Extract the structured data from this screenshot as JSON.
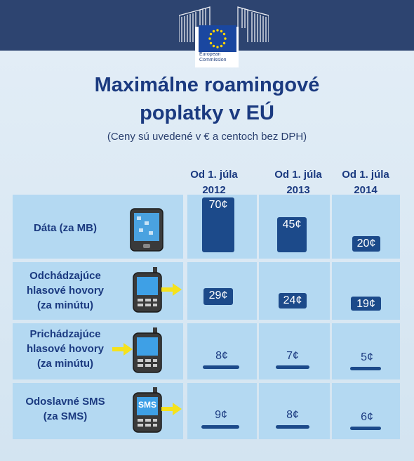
{
  "logo": {
    "line1": "European",
    "line2": "Commission"
  },
  "title": {
    "line1": "Maximálne roamingové",
    "line2": "poplatky v  EÚ"
  },
  "subtitle": "(Ceny sú uvedené v € a centoch bez DPH)",
  "columns": [
    {
      "line1": "Od 1. júla",
      "line2": "2012"
    },
    {
      "line1": "Od 1. júla",
      "line2": "2013"
    },
    {
      "line1": "Od 1. júla",
      "line2": "2014"
    }
  ],
  "rows": [
    {
      "label": [
        "Dáta (za MB)"
      ],
      "icon": "smartphone-icon",
      "values": [
        "70¢",
        "45¢",
        "20¢"
      ],
      "amounts": [
        70,
        45,
        20
      ]
    },
    {
      "label": [
        "Odchádzajúce",
        "hlasové hovory",
        "(za minútu)"
      ],
      "icon": "outgoing-call-phone-icon",
      "values": [
        "29¢",
        "24¢",
        "19¢"
      ],
      "amounts": [
        29,
        24,
        19
      ]
    },
    {
      "label": [
        "Prichádzajúce",
        "hlasové hovory",
        "(za minútu)"
      ],
      "icon": "incoming-call-phone-icon",
      "values": [
        "8¢",
        "7¢",
        "5¢"
      ],
      "amounts": [
        8,
        7,
        5
      ]
    },
    {
      "label": [
        "Odoslavné SMS",
        "(za SMS)"
      ],
      "icon": "sms-phone-icon",
      "icon_text": "SMS",
      "values": [
        "9¢",
        "8¢",
        "6¢"
      ],
      "amounts": [
        9,
        8,
        6
      ]
    }
  ],
  "colors": {
    "navy": "#2d4470",
    "bar": "#1c4a8a",
    "cell": "#b4d9f2",
    "title": "#1b3a80",
    "arrow": "#f5e21c"
  }
}
